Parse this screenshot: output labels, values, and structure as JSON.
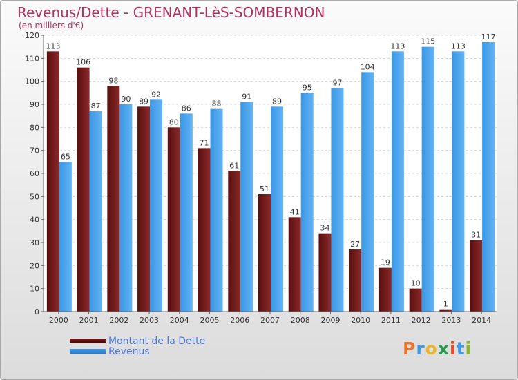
{
  "chart_data": {
    "type": "bar",
    "title": "Revenus/Dette - GRENANT-LèS-SOMBERNON",
    "subtitle": "(en milliers d'€)",
    "categories": [
      "2000",
      "2001",
      "2002",
      "2003",
      "2004",
      "2005",
      "2006",
      "2007",
      "2008",
      "2009",
      "2010",
      "2011",
      "2012",
      "2013",
      "2014"
    ],
    "series": [
      {
        "name": "Montant de la Dette",
        "color": "#7a1a1a",
        "values": [
          113,
          106,
          98,
          89,
          80,
          71,
          61,
          51,
          41,
          34,
          27,
          19,
          10,
          1,
          31
        ]
      },
      {
        "name": "Revenus",
        "color": "#3d9ae8",
        "values": [
          65,
          87,
          90,
          92,
          86,
          88,
          91,
          89,
          95,
          97,
          104,
          113,
          115,
          113,
          117
        ]
      }
    ],
    "ylim": [
      0,
      120
    ],
    "yticks": [
      0,
      10,
      20,
      30,
      40,
      50,
      60,
      70,
      80,
      90,
      100,
      110,
      120
    ],
    "grid": true,
    "legend_position": "bottom-left"
  },
  "logo": {
    "text": "Proxiti",
    "letters": [
      "P",
      "r",
      "o",
      "x",
      "i",
      "t",
      "i"
    ],
    "colors": [
      "#e8732a",
      "#3d9ae8",
      "#e8b82a",
      "#2a9a4a",
      "#e84a2a",
      "#3d9ae8",
      "#8ab82a"
    ]
  }
}
